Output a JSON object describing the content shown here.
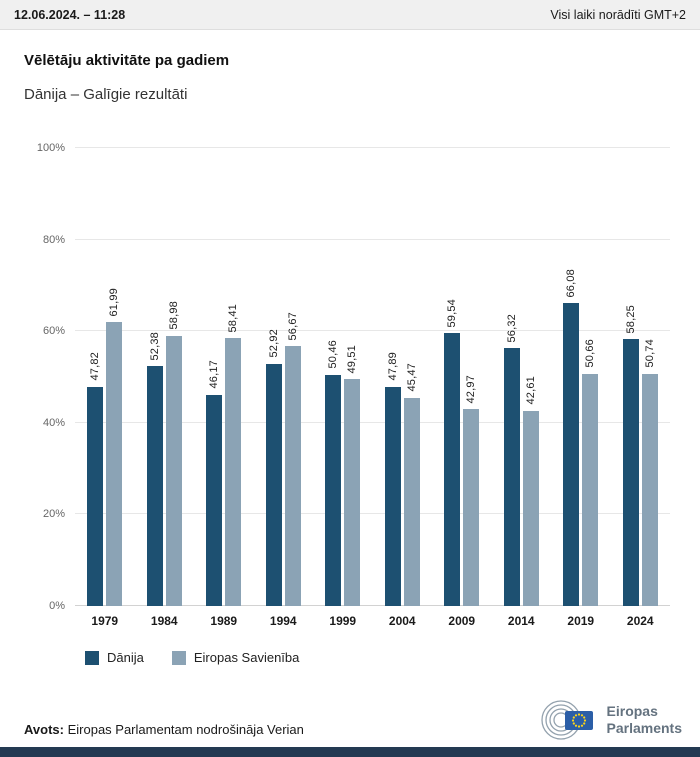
{
  "header": {
    "datetime": "12.06.2024. – 11:28",
    "timezone_note": "Visi laiki norādīti GMT+2"
  },
  "title": "Vēlētāju aktivitāte pa gadiem",
  "subtitle": "Dānija – Galīgie rezultāti",
  "chart_data": {
    "type": "bar",
    "categories": [
      "1979",
      "1984",
      "1989",
      "1994",
      "1999",
      "2004",
      "2009",
      "2014",
      "2019",
      "2024"
    ],
    "series": [
      {
        "name": "Dānija",
        "color": "#1d5071",
        "values": [
          47.82,
          52.38,
          46.17,
          52.92,
          50.46,
          47.89,
          59.54,
          56.32,
          66.08,
          58.25
        ]
      },
      {
        "name": "Eiropas Savienība",
        "color": "#8ba3b5",
        "values": [
          61.99,
          58.98,
          58.41,
          56.67,
          49.51,
          45.47,
          42.97,
          42.61,
          50.66,
          50.74
        ]
      }
    ],
    "title": "Vēlētāju aktivitāte pa gadiem",
    "xlabel": "",
    "ylabel": "",
    "ylim": [
      0,
      100
    ],
    "yticks": [
      "0%",
      "20%",
      "40%",
      "60%",
      "80%",
      "100%"
    ],
    "grid": true,
    "legend_position": "bottom",
    "value_label_decimal_separator": ","
  },
  "footer": {
    "source_label": "Avots:",
    "source_text": "Eiropas Parlamentam nodrošināja Verian"
  },
  "logo": {
    "line1": "Eiropas",
    "line2": "Parlaments"
  },
  "colors": {
    "accent_dark": "#1d5071",
    "accent_light": "#8ba3b5",
    "topbar_bg": "#f0f0f0",
    "bottom_strip": "#233a52"
  }
}
